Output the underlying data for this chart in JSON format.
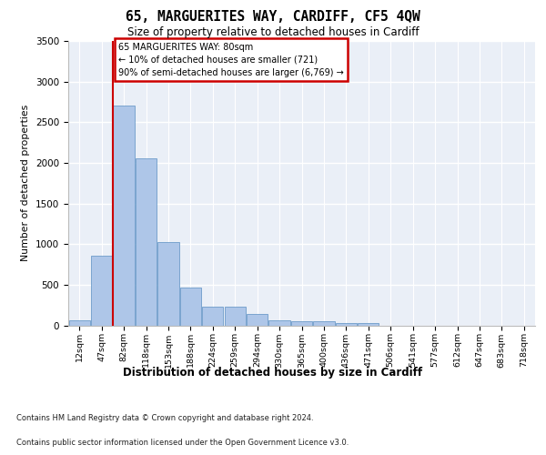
{
  "title": "65, MARGUERITES WAY, CARDIFF, CF5 4QW",
  "subtitle": "Size of property relative to detached houses in Cardiff",
  "xlabel": "Distribution of detached houses by size in Cardiff",
  "ylabel": "Number of detached properties",
  "categories": [
    "12sqm",
    "47sqm",
    "82sqm",
    "118sqm",
    "153sqm",
    "188sqm",
    "224sqm",
    "259sqm",
    "294sqm",
    "330sqm",
    "365sqm",
    "400sqm",
    "436sqm",
    "471sqm",
    "506sqm",
    "541sqm",
    "577sqm",
    "612sqm",
    "647sqm",
    "683sqm",
    "718sqm"
  ],
  "values": [
    60,
    860,
    2700,
    2060,
    1020,
    460,
    225,
    230,
    135,
    65,
    55,
    50,
    30,
    25,
    0,
    0,
    0,
    0,
    0,
    0,
    0
  ],
  "bar_color": "#aec6e8",
  "bar_edge_color": "#5a8fc2",
  "bar_edge_width": 0.5,
  "vline_color": "#cc0000",
  "vline_x_index": 1.5,
  "annotation_line1": "65 MARGUERITES WAY: 80sqm",
  "annotation_line2": "← 10% of detached houses are smaller (721)",
  "annotation_line3": "90% of semi-detached houses are larger (6,769) →",
  "annotation_box_edgecolor": "#cc0000",
  "ylim": [
    0,
    3500
  ],
  "yticks": [
    0,
    500,
    1000,
    1500,
    2000,
    2500,
    3000,
    3500
  ],
  "background_color": "#eaeff7",
  "grid_color": "#ffffff",
  "footer_line1": "Contains HM Land Registry data © Crown copyright and database right 2024.",
  "footer_line2": "Contains public sector information licensed under the Open Government Licence v3.0."
}
